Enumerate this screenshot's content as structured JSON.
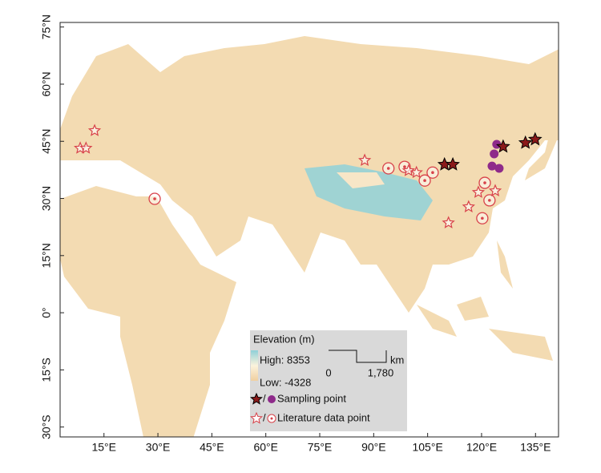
{
  "map": {
    "xlim": [
      2.8,
      141.4
    ],
    "ylim": [
      -32.6,
      76.2
    ],
    "xticks": [
      {
        "value": 15,
        "label": "15°E"
      },
      {
        "value": 30,
        "label": "30°E"
      },
      {
        "value": 45,
        "label": "45°E"
      },
      {
        "value": 60,
        "label": "60°E"
      },
      {
        "value": 75,
        "label": "75°E"
      },
      {
        "value": 90,
        "label": "90°E"
      },
      {
        "value": 105,
        "label": "105°E"
      },
      {
        "value": 120,
        "label": "120°E"
      },
      {
        "value": 135,
        "label": "135°E"
      }
    ],
    "yticks": [
      {
        "value": 75,
        "label": "75°N"
      },
      {
        "value": 60,
        "label": "60°N"
      },
      {
        "value": 45,
        "label": "45°N"
      },
      {
        "value": 30,
        "label": "30°N"
      },
      {
        "value": 15,
        "label": "15°N"
      },
      {
        "value": 0,
        "label": "0°"
      },
      {
        "value": -15,
        "label": "15°S"
      },
      {
        "value": -30,
        "label": "30°S"
      }
    ],
    "sampling_stars": [
      {
        "lon": 109.7,
        "lat": 38.9
      },
      {
        "lon": 112.0,
        "lat": 38.9
      },
      {
        "lon": 126.0,
        "lat": 43.6
      },
      {
        "lon": 132.2,
        "lat": 44.6
      },
      {
        "lon": 134.9,
        "lat": 45.5
      }
    ],
    "sampling_circles": [
      {
        "lon": 124.2,
        "lat": 44.2
      },
      {
        "lon": 123.5,
        "lat": 41.7
      },
      {
        "lon": 122.9,
        "lat": 38.5
      },
      {
        "lon": 124.9,
        "lat": 37.9
      }
    ],
    "literature_stars": [
      {
        "lon": 8.4,
        "lat": 43.2
      },
      {
        "lon": 10.0,
        "lat": 43.2
      },
      {
        "lon": 12.4,
        "lat": 47.8
      },
      {
        "lon": 87.5,
        "lat": 40.0
      },
      {
        "lon": 99.7,
        "lat": 37.3
      },
      {
        "lon": 101.9,
        "lat": 36.8
      },
      {
        "lon": 110.8,
        "lat": 23.6
      },
      {
        "lon": 116.4,
        "lat": 27.8
      },
      {
        "lon": 119.1,
        "lat": 31.6
      },
      {
        "lon": 123.8,
        "lat": 32.0
      }
    ],
    "literature_circles": [
      {
        "lon": 29.1,
        "lat": 29.9
      },
      {
        "lon": 94.1,
        "lat": 37.9
      },
      {
        "lon": 98.6,
        "lat": 38.3
      },
      {
        "lon": 106.4,
        "lat": 36.8
      },
      {
        "lon": 104.2,
        "lat": 34.7
      },
      {
        "lon": 120.9,
        "lat": 34.1
      },
      {
        "lon": 122.2,
        "lat": 29.5
      },
      {
        "lon": 120.2,
        "lat": 24.8
      }
    ],
    "legend": {
      "title": "Elevation (m)",
      "high": "High: 8353",
      "low": "Low: -4328",
      "scale_start": "0",
      "scale_end": "1,780",
      "scale_unit": "km",
      "separator_1": "/",
      "separator_2": "/",
      "sampling": "Sampling point",
      "literature": "Literature data point"
    }
  }
}
